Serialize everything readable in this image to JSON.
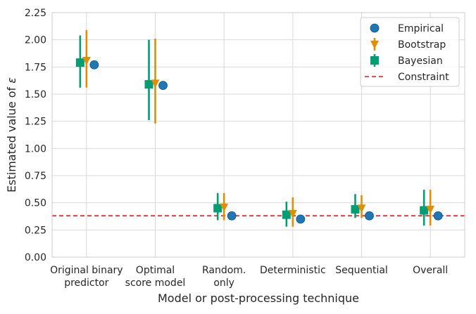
{
  "chart_data": {
    "type": "scatter",
    "title": "",
    "xlabel": "Model or post-processing technique",
    "ylabel_prefix": "Estimated value of ",
    "ylabel_symbol": "ε",
    "ylim": [
      0,
      2.25
    ],
    "yticks": [
      "0.00",
      "0.25",
      "0.50",
      "0.75",
      "1.00",
      "1.25",
      "1.50",
      "1.75",
      "2.00",
      "2.25"
    ],
    "grid": true,
    "legend_position": "top-right",
    "categories": [
      [
        "Original binary",
        "predictor"
      ],
      [
        "Optimal",
        "score model"
      ],
      [
        "Random.",
        "only"
      ],
      [
        "Deterministic"
      ],
      [
        "Sequential"
      ],
      [
        "Overall"
      ]
    ],
    "series": [
      {
        "name": "Empirical",
        "marker": "circle",
        "color": "#1f77b4",
        "values": [
          1.77,
          1.58,
          0.38,
          0.35,
          0.38,
          0.38
        ]
      },
      {
        "name": "Bootstrap",
        "marker": "triangle-down",
        "color": "#de8f05",
        "values": [
          1.81,
          1.6,
          0.46,
          0.4,
          0.45,
          0.44
        ],
        "err_low": [
          1.56,
          1.23,
          0.34,
          0.28,
          0.36,
          0.29
        ],
        "err_high": [
          2.09,
          2.01,
          0.59,
          0.55,
          0.57,
          0.62
        ]
      },
      {
        "name": "Bayesian",
        "marker": "square",
        "color": "#029e73",
        "values": [
          1.79,
          1.59,
          0.45,
          0.39,
          0.44,
          0.43
        ],
        "err_low": [
          1.56,
          1.26,
          0.34,
          0.28,
          0.36,
          0.29
        ],
        "err_high": [
          2.04,
          2.0,
          0.59,
          0.51,
          0.58,
          0.62
        ]
      }
    ],
    "reference_line": {
      "name": "Constraint",
      "y": 0.38,
      "color": "#e41a1c",
      "style": "dashed"
    },
    "legend": [
      "Empirical",
      "Bootstrap",
      "Bayesian",
      "Constraint"
    ]
  }
}
